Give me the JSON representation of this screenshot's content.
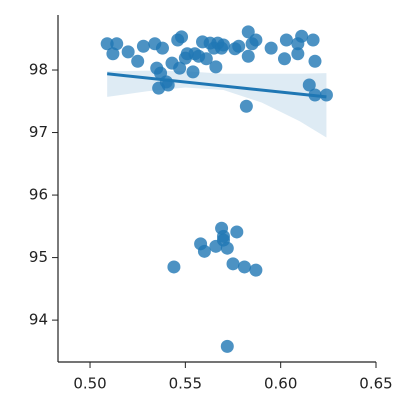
{
  "chart_data": {
    "type": "scatter",
    "x": [
      0.509,
      0.514,
      0.512,
      0.52,
      0.525,
      0.528,
      0.534,
      0.538,
      0.535,
      0.537,
      0.536,
      0.54,
      0.541,
      0.543,
      0.546,
      0.548,
      0.547,
      0.55,
      0.554,
      0.551,
      0.555,
      0.557,
      0.559,
      0.561,
      0.563,
      0.565,
      0.566,
      0.567,
      0.569,
      0.57,
      0.576,
      0.578,
      0.582,
      0.583,
      0.583,
      0.585,
      0.587,
      0.595,
      0.603,
      0.602,
      0.609,
      0.609,
      0.611,
      0.617,
      0.618,
      0.615,
      0.618,
      0.624,
      0.544,
      0.558,
      0.56,
      0.566,
      0.569,
      0.57,
      0.57,
      0.572,
      0.577,
      0.575,
      0.581,
      0.587,
      0.572
    ],
    "y": [
      98.42,
      98.42,
      98.26,
      98.29,
      98.14,
      98.38,
      98.42,
      98.35,
      98.03,
      97.95,
      97.71,
      97.81,
      97.76,
      98.11,
      98.48,
      98.53,
      98.03,
      98.19,
      97.97,
      98.26,
      98.26,
      98.22,
      98.45,
      98.18,
      98.43,
      98.35,
      98.05,
      98.43,
      98.35,
      98.4,
      98.34,
      98.38,
      97.42,
      98.22,
      98.61,
      98.42,
      98.48,
      98.35,
      98.48,
      98.18,
      98.26,
      98.42,
      98.54,
      98.48,
      98.14,
      97.76,
      97.6,
      97.6,
      94.85,
      95.22,
      95.1,
      95.18,
      95.47,
      95.34,
      95.28,
      95.15,
      95.41,
      94.9,
      94.85,
      94.8,
      93.58
    ],
    "color": "#1f77b4",
    "regression": {
      "x": [
        0.509,
        0.624
      ],
      "y": [
        97.94,
        97.57
      ]
    },
    "band": {
      "x": [
        0.509,
        0.53,
        0.55,
        0.57,
        0.59,
        0.61,
        0.624
      ],
      "lower": [
        97.57,
        97.66,
        97.72,
        97.68,
        97.48,
        97.18,
        96.92
      ],
      "upper": [
        97.98,
        97.99,
        97.98,
        97.94,
        97.94,
        97.94,
        97.95
      ]
    },
    "xlim": [
      0.4832,
      0.65
    ],
    "ylim": [
      93.33,
      98.88
    ],
    "xticks": [
      {
        "value": 0.5,
        "label": "0.50"
      },
      {
        "value": 0.55,
        "label": "0.55"
      },
      {
        "value": 0.6,
        "label": "0.60"
      },
      {
        "value": 0.65,
        "label": "0.65"
      }
    ],
    "yticks": [
      94,
      95,
      96,
      97,
      98
    ]
  }
}
